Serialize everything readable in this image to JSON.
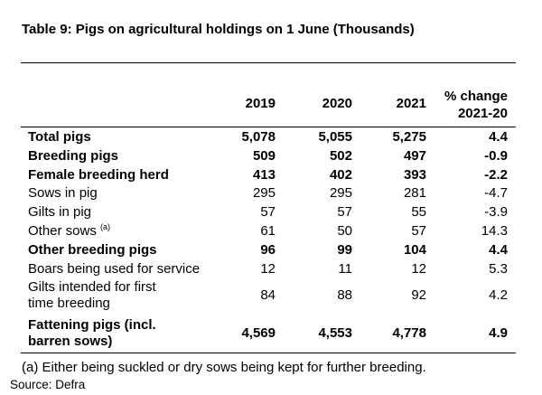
{
  "title": "Table 9: Pigs on agricultural holdings on 1 June (Thousands)",
  "columns": {
    "c1": "2019",
    "c2": "2020",
    "c3": "2021",
    "c4_line1": "% change",
    "c4_line2": "2021-20"
  },
  "rows": [
    {
      "label": "Total pigs",
      "note": "",
      "bold": true,
      "v2019": "5,078",
      "v2020": "5,055",
      "v2021": "5,275",
      "change": "4.4"
    },
    {
      "label": "Breeding pigs",
      "note": "",
      "bold": true,
      "v2019": "509",
      "v2020": "502",
      "v2021": "497",
      "change": "-0.9"
    },
    {
      "label": "Female breeding herd",
      "note": "",
      "bold": true,
      "v2019": "413",
      "v2020": "402",
      "v2021": "393",
      "change": "-2.2"
    },
    {
      "label": "Sows in pig",
      "note": "",
      "bold": false,
      "v2019": "295",
      "v2020": "295",
      "v2021": "281",
      "change": "-4.7"
    },
    {
      "label": "Gilts in pig",
      "note": "",
      "bold": false,
      "v2019": "57",
      "v2020": "57",
      "v2021": "55",
      "change": "-3.9"
    },
    {
      "label": "Other sows",
      "note": "(a)",
      "bold": false,
      "v2019": "61",
      "v2020": "50",
      "v2021": "57",
      "change": "14.3"
    },
    {
      "label": "Other breeding pigs",
      "note": "",
      "bold": true,
      "v2019": "96",
      "v2020": "99",
      "v2021": "104",
      "change": "4.4"
    },
    {
      "label": "Boars being used for service",
      "note": "",
      "bold": false,
      "v2019": "12",
      "v2020": "11",
      "v2021": "12",
      "change": "5.3"
    },
    {
      "label": "Gilts intended for first time breeding",
      "note": "",
      "bold": false,
      "v2019": "84",
      "v2020": "88",
      "v2021": "92",
      "change": "4.2"
    },
    {
      "label": "Fattening pigs (incl. barren sows)",
      "note": "",
      "bold": true,
      "v2019": "4,569",
      "v2020": "4,553",
      "v2021": "4,778",
      "change": "4.9"
    }
  ],
  "footnote": "(a) Either being suckled or dry sows being kept for further breeding.",
  "source": "Source: Defra"
}
